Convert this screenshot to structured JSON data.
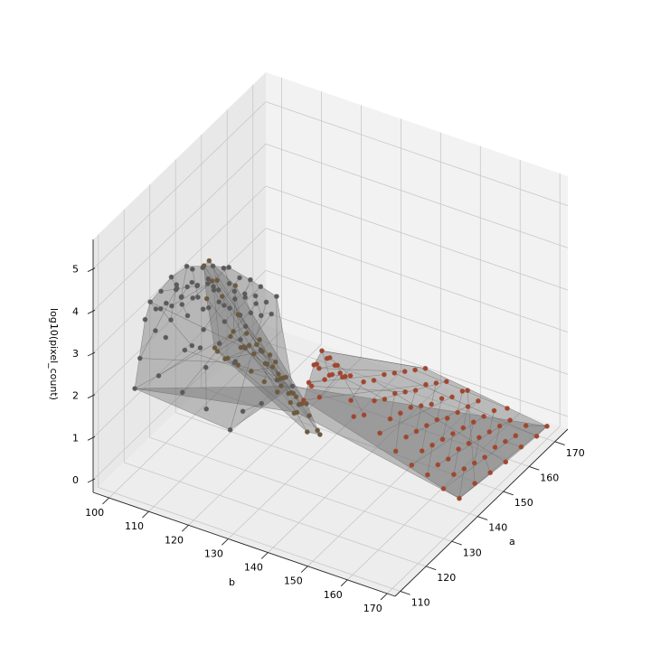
{
  "chart_data": {
    "type": "scatter3d",
    "title": "",
    "xlabel": "a",
    "ylabel": "b",
    "zlabel": "log10(pixel_count)",
    "x_ticks": [
      "110",
      "120",
      "130",
      "140",
      "150",
      "160",
      "170"
    ],
    "y_ticks": [
      "100",
      "110",
      "120",
      "130",
      "140",
      "150",
      "160",
      "170"
    ],
    "z_ticks": [
      "0",
      "1",
      "2",
      "3",
      "4",
      "5"
    ],
    "xlim": [
      108,
      175
    ],
    "ylim": [
      96,
      172
    ],
    "zlim": [
      -0.3,
      5.7
    ],
    "grid": true,
    "colors": {
      "grey_cluster": "#5a5a5a",
      "olive_cluster": "#6b5a40",
      "rust_cluster": "#a0462e",
      "surface": "#6e6e6e"
    },
    "series": [
      {
        "color_key": "grey_cluster",
        "points": [
          [
            120,
            100,
            2.3
          ],
          [
            122,
            100,
            3.1
          ],
          [
            124,
            100,
            3.4
          ],
          [
            126,
            100,
            2.6
          ],
          [
            128,
            100,
            3.0
          ],
          [
            130,
            100,
            2.2
          ],
          [
            132,
            100,
            2.5
          ],
          [
            134,
            100,
            3.1
          ],
          [
            136,
            100,
            2.8
          ],
          [
            120,
            104,
            3.6
          ],
          [
            122,
            104,
            3.9
          ],
          [
            124,
            104,
            3.5
          ],
          [
            126,
            104,
            4.0
          ],
          [
            128,
            104,
            3.7
          ],
          [
            130,
            104,
            3.3
          ],
          [
            132,
            104,
            3.9
          ],
          [
            134,
            104,
            3.4
          ],
          [
            136,
            104,
            3.2
          ],
          [
            120,
            108,
            3.8
          ],
          [
            122,
            108,
            4.1
          ],
          [
            124,
            108,
            3.6
          ],
          [
            126,
            108,
            3.9
          ],
          [
            128,
            108,
            4.2
          ],
          [
            130,
            108,
            3.7
          ],
          [
            132,
            108,
            4.0
          ],
          [
            134,
            108,
            3.5
          ],
          [
            136,
            108,
            3.8
          ],
          [
            120,
            112,
            3.7
          ],
          [
            122,
            112,
            4.0
          ],
          [
            124,
            112,
            3.9
          ],
          [
            126,
            112,
            3.5
          ],
          [
            128,
            112,
            4.1
          ],
          [
            130,
            112,
            3.8
          ],
          [
            132,
            112,
            3.6
          ],
          [
            134,
            112,
            4.0
          ],
          [
            136,
            112,
            3.9
          ],
          [
            120,
            116,
            3.5
          ],
          [
            122,
            116,
            3.9
          ],
          [
            124,
            116,
            4.2
          ],
          [
            126,
            116,
            3.8
          ],
          [
            128,
            116,
            3.6
          ],
          [
            130,
            116,
            4.0
          ],
          [
            132,
            116,
            3.7
          ],
          [
            134,
            116,
            3.9
          ],
          [
            136,
            116,
            3.4
          ],
          [
            120,
            120,
            3.3
          ],
          [
            122,
            120,
            3.7
          ],
          [
            124,
            120,
            3.9
          ],
          [
            126,
            120,
            4.0
          ],
          [
            128,
            120,
            3.5
          ],
          [
            130,
            120,
            3.8
          ],
          [
            132,
            120,
            4.1
          ],
          [
            134,
            120,
            3.6
          ],
          [
            136,
            120,
            3.7
          ],
          [
            120,
            124,
            3.0
          ],
          [
            122,
            124,
            3.4
          ],
          [
            124,
            124,
            3.6
          ],
          [
            126,
            124,
            3.8
          ],
          [
            128,
            124,
            3.9
          ],
          [
            130,
            124,
            3.5
          ],
          [
            132,
            124,
            3.7
          ],
          [
            134,
            124,
            3.3
          ],
          [
            136,
            124,
            3.6
          ],
          [
            118,
            100,
            1.7
          ],
          [
            118,
            106,
            2.2
          ],
          [
            118,
            112,
            2.0
          ],
          [
            118,
            118,
            1.8
          ],
          [
            118,
            124,
            1.5
          ],
          [
            124,
            128,
            1.9
          ],
          [
            130,
            128,
            2.1
          ],
          [
            136,
            128,
            1.6
          ],
          [
            128,
            110,
            2.4
          ],
          [
            132,
            116,
            2.0
          ],
          [
            124,
            114,
            2.3
          ],
          [
            130,
            120,
            2.6
          ],
          [
            126,
            122,
            1.4
          ],
          [
            134,
            104,
            1.9
          ],
          [
            122,
            110,
            2.7
          ],
          [
            136,
            120,
            2.2
          ]
        ]
      },
      {
        "color_key": "olive_cluster",
        "points": [
          [
            110,
            126,
            3.9
          ],
          [
            110,
            130,
            4.5
          ],
          [
            110,
            134,
            4.3
          ],
          [
            110,
            138,
            4.0
          ],
          [
            110,
            142,
            3.6
          ],
          [
            112,
            124,
            3.8
          ],
          [
            112,
            128,
            4.2
          ],
          [
            112,
            132,
            4.4
          ],
          [
            112,
            136,
            4.1
          ],
          [
            112,
            140,
            3.7
          ],
          [
            114,
            126,
            3.5
          ],
          [
            114,
            130,
            3.9
          ],
          [
            114,
            134,
            4.2
          ],
          [
            114,
            138,
            3.8
          ],
          [
            114,
            142,
            3.2
          ],
          [
            116,
            124,
            3.3
          ],
          [
            116,
            128,
            3.7
          ],
          [
            116,
            132,
            3.9
          ],
          [
            116,
            136,
            3.5
          ],
          [
            116,
            140,
            3.0
          ],
          [
            118,
            126,
            3.1
          ],
          [
            118,
            130,
            3.5
          ],
          [
            118,
            134,
            3.6
          ],
          [
            118,
            138,
            3.2
          ],
          [
            118,
            142,
            2.7
          ],
          [
            120,
            128,
            2.9
          ],
          [
            120,
            132,
            3.2
          ],
          [
            120,
            136,
            3.0
          ],
          [
            120,
            140,
            2.5
          ],
          [
            122,
            130,
            2.6
          ],
          [
            122,
            134,
            2.8
          ],
          [
            122,
            138,
            2.5
          ],
          [
            124,
            132,
            2.3
          ],
          [
            124,
            136,
            2.4
          ],
          [
            124,
            140,
            2.0
          ],
          [
            126,
            134,
            2.0
          ],
          [
            126,
            138,
            2.1
          ],
          [
            114,
            120,
            5.5
          ],
          [
            116,
            120,
            5.5
          ],
          [
            114,
            122,
            5.2
          ],
          [
            116,
            122,
            5.1
          ],
          [
            118,
            122,
            4.6
          ],
          [
            112,
            122,
            4.9
          ],
          [
            118,
            126,
            4.3
          ],
          [
            120,
            124,
            4.8
          ],
          [
            114,
            146,
            2.4
          ],
          [
            118,
            146,
            2.2
          ],
          [
            122,
            144,
            1.8
          ],
          [
            112,
            144,
            2.9
          ],
          [
            110,
            146,
            3.1
          ]
        ]
      },
      {
        "color_key": "rust_cluster",
        "points": [
          [
            130,
            136,
            2.3
          ],
          [
            132,
            136,
            2.6
          ],
          [
            134,
            136,
            2.4
          ],
          [
            130,
            138,
            2.8
          ],
          [
            132,
            138,
            3.0
          ],
          [
            134,
            138,
            2.7
          ],
          [
            136,
            138,
            2.2
          ],
          [
            130,
            140,
            2.5
          ],
          [
            132,
            140,
            2.9
          ],
          [
            134,
            140,
            2.6
          ],
          [
            136,
            140,
            2.3
          ],
          [
            138,
            136,
            2.0
          ],
          [
            138,
            138,
            2.3
          ],
          [
            138,
            140,
            2.1
          ],
          [
            140,
            138,
            1.9
          ],
          [
            140,
            140,
            2.0
          ],
          [
            128,
            138,
            2.4
          ],
          [
            128,
            140,
            2.2
          ],
          [
            128,
            136,
            2.0
          ],
          [
            136,
            146,
            1.5
          ],
          [
            140,
            146,
            1.6
          ],
          [
            144,
            146,
            1.4
          ],
          [
            148,
            146,
            1.3
          ],
          [
            152,
            146,
            1.1
          ],
          [
            156,
            146,
            0.9
          ],
          [
            160,
            146,
            0.8
          ],
          [
            164,
            146,
            0.6
          ],
          [
            168,
            146,
            0.4
          ],
          [
            136,
            150,
            1.2
          ],
          [
            140,
            150,
            1.3
          ],
          [
            144,
            150,
            1.2
          ],
          [
            148,
            150,
            1.1
          ],
          [
            152,
            150,
            0.9
          ],
          [
            156,
            150,
            0.7
          ],
          [
            160,
            150,
            0.6
          ],
          [
            164,
            150,
            0.4
          ],
          [
            168,
            150,
            0.3
          ],
          [
            136,
            154,
            0.9
          ],
          [
            140,
            154,
            1.0
          ],
          [
            144,
            154,
            0.9
          ],
          [
            148,
            154,
            0.8
          ],
          [
            152,
            154,
            0.7
          ],
          [
            156,
            154,
            0.5
          ],
          [
            160,
            154,
            0.4
          ],
          [
            164,
            154,
            0.3
          ],
          [
            168,
            154,
            0.2
          ],
          [
            136,
            158,
            0.7
          ],
          [
            140,
            158,
            0.8
          ],
          [
            144,
            158,
            0.7
          ],
          [
            148,
            158,
            0.6
          ],
          [
            152,
            158,
            0.5
          ],
          [
            156,
            158,
            0.4
          ],
          [
            160,
            158,
            0.3
          ],
          [
            164,
            158,
            0.2
          ],
          [
            168,
            158,
            0.1
          ],
          [
            136,
            162,
            0.6
          ],
          [
            140,
            162,
            0.6
          ],
          [
            144,
            162,
            0.5
          ],
          [
            148,
            162,
            0.5
          ],
          [
            152,
            162,
            0.4
          ],
          [
            156,
            162,
            0.3
          ],
          [
            160,
            162,
            0.2
          ],
          [
            164,
            162,
            0.1
          ],
          [
            168,
            162,
            0.0
          ],
          [
            136,
            166,
            0.4
          ],
          [
            140,
            166,
            0.5
          ],
          [
            144,
            166,
            0.4
          ],
          [
            148,
            166,
            0.3
          ],
          [
            152,
            166,
            0.2
          ],
          [
            156,
            166,
            0.2
          ],
          [
            160,
            166,
            0.1
          ],
          [
            164,
            166,
            0.0
          ],
          [
            168,
            166,
            0.0
          ],
          [
            136,
            170,
            0.3
          ],
          [
            142,
            170,
            0.3
          ],
          [
            148,
            170,
            0.2
          ],
          [
            154,
            170,
            0.1
          ],
          [
            160,
            170,
            0.1
          ],
          [
            166,
            170,
            0.0
          ],
          [
            170,
            170,
            0.0
          ],
          [
            170,
            160,
            0.1
          ],
          [
            170,
            150,
            0.2
          ],
          [
            142,
            142,
            1.8
          ],
          [
            146,
            142,
            1.6
          ],
          [
            150,
            142,
            1.5
          ],
          [
            154,
            142,
            1.3
          ],
          [
            158,
            142,
            1.1
          ],
          [
            162,
            142,
            0.9
          ],
          [
            166,
            142,
            0.7
          ],
          [
            134,
            144,
            1.9
          ],
          [
            132,
            146,
            1.7
          ]
        ]
      }
    ]
  }
}
